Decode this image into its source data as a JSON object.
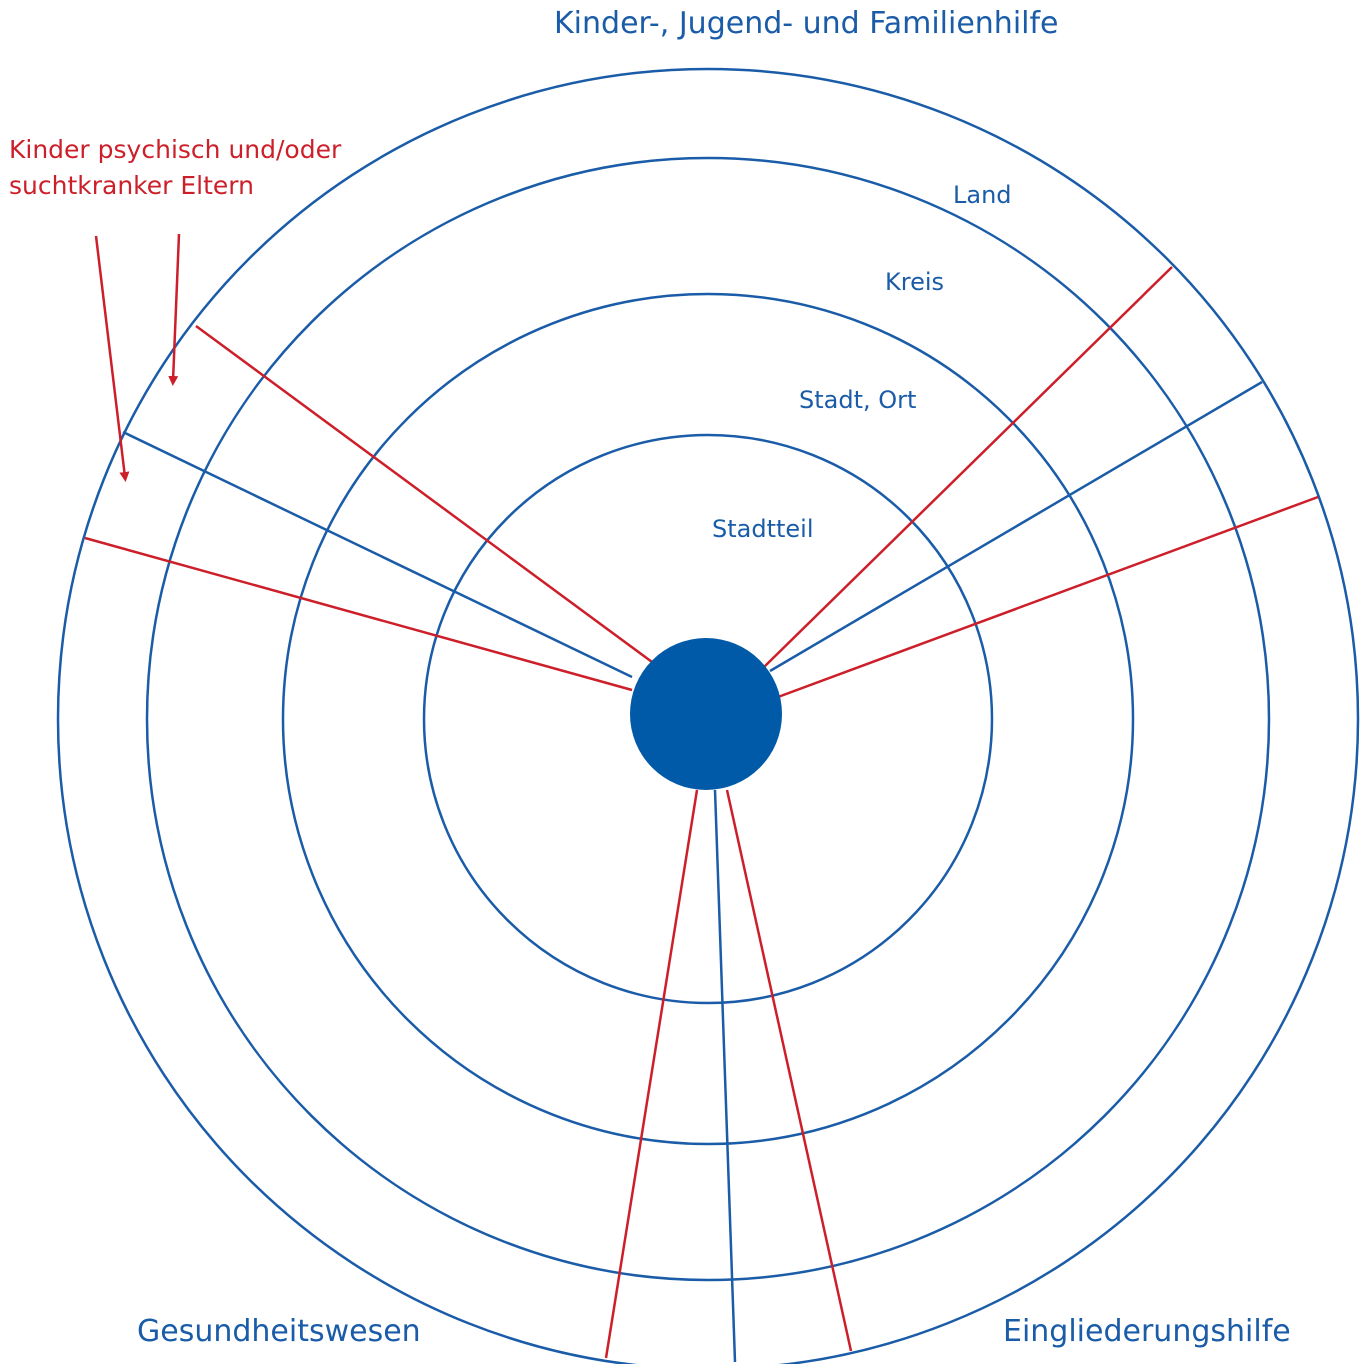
{
  "colors": {
    "blue": "#1a5ca8",
    "red": "#cc1f2a",
    "hub": "#005aa8"
  },
  "sectors": {
    "top": "Kinder-, Jugend- und Familienhilfe",
    "bottom_left": "Gesundheitswesen",
    "bottom_right": "Eingliederungshilfe"
  },
  "rings": {
    "land": "Land",
    "kreis": "Kreis",
    "stadt_ort": "Stadt, Ort",
    "stadtteil": "Stadtteil"
  },
  "annotation": {
    "line1": "Kinder psychisch und/oder",
    "line2": "suchtkranker Eltern"
  }
}
